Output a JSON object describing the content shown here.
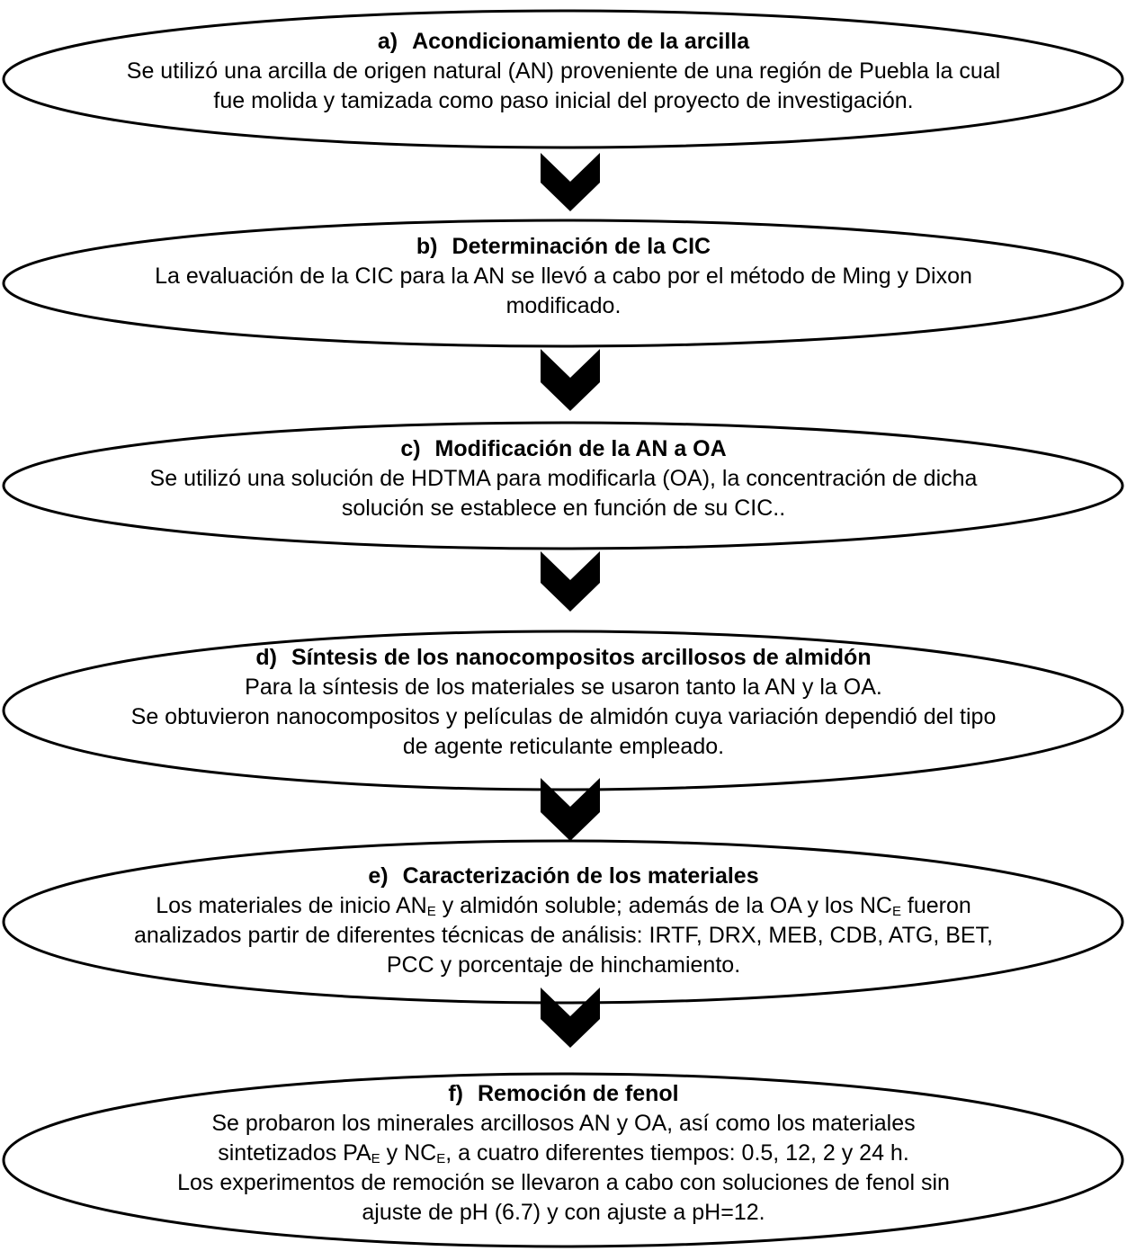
{
  "steps": [
    {
      "letter": "a)",
      "title": "Acondicionamiento de la arcilla",
      "lines": [
        [
          "Se utilizó una arcilla de origen natural (AN) proveniente de una región de Puebla la cual"
        ],
        [
          "fue molida y tamizada como paso inicial del proyecto de investigación."
        ]
      ]
    },
    {
      "letter": "b)",
      "title": "Determinación de la CIC",
      "lines": [
        [
          "La evaluación de la CIC para la AN se llevó a cabo por el método de Ming y Dixon"
        ],
        [
          "modificado."
        ]
      ]
    },
    {
      "letter": "c)",
      "title": "Modificación de la AN a OA",
      "lines": [
        [
          "Se utilizó una solución de HDTMA para modificarla (OA), la concentración de dicha"
        ],
        [
          "solución se establece en función de su CIC.."
        ]
      ]
    },
    {
      "letter": "d)",
      "title": "Síntesis de los nanocompositos arcillosos de almidón",
      "lines": [
        [
          "Para la síntesis de los materiales se usaron tanto la AN y la OA."
        ],
        [
          "Se obtuvieron nanocompositos y películas de almidón cuya variación dependió del tipo"
        ],
        [
          "de agente reticulante empleado."
        ]
      ]
    },
    {
      "letter": "e)",
      "title": "Caracterización de los materiales",
      "lines": [
        [
          "Los materiales de inicio AN",
          {
            "sub": "E"
          },
          " y almidón soluble; además de la OA y los NC",
          {
            "sub": "E"
          },
          " fueron"
        ],
        [
          "analizados partir de diferentes técnicas de análisis: IRTF, DRX, MEB, CDB, ATG, BET,"
        ],
        [
          "PCC y porcentaje de hinchamiento."
        ]
      ]
    },
    {
      "letter": "f)",
      "title": "Remoción de fenol",
      "lines": [
        [
          "Se probaron los minerales arcillosos AN y OA, así como los materiales"
        ],
        [
          "sintetizados PA",
          {
            "sub": "E"
          },
          " y NC",
          {
            "sub": "E"
          },
          ", a cuatro diferentes tiempos: 0.5, 12, 2 y 24 h."
        ],
        [
          "Los experimentos de remoción se llevaron a cabo con soluciones de fenol sin"
        ],
        [
          "ajuste de pH (6.7) y con ajuste a pH=12."
        ]
      ]
    }
  ],
  "colors": {
    "stroke": "#000000",
    "arrow": "#000000",
    "fill": "#ffffff",
    "text": "#000000"
  },
  "arrow_icon": "chevron-down-arrow"
}
